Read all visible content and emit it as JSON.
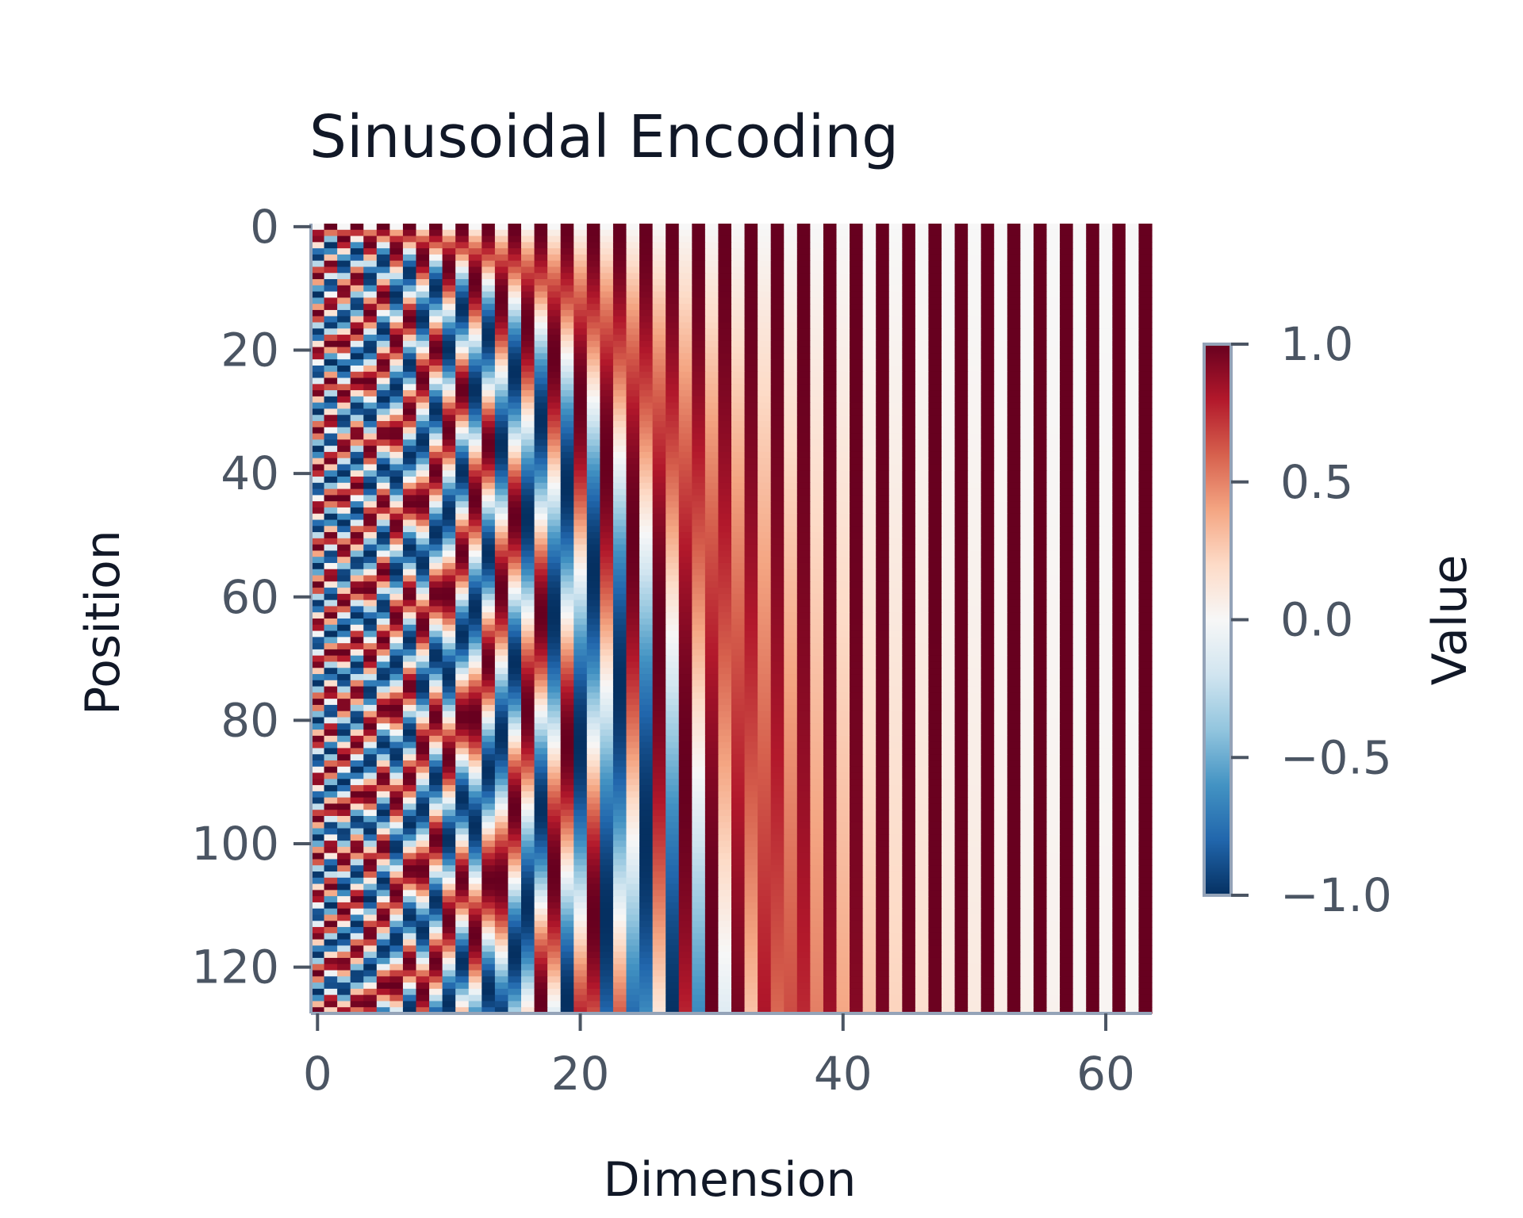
{
  "chart_data": {
    "type": "heatmap",
    "title": "Sinusoidal Encoding",
    "xlabel": "Dimension",
    "ylabel": "Position",
    "colorbar_label": "Value",
    "rows": 128,
    "cols": 64,
    "value_formula": "PE(pos, 2i) = sin(pos / 10000^(2i/64)), PE(pos, 2i+1) = cos(pos / 10000^(2i/64))",
    "x_ticks": [
      0,
      20,
      40,
      60
    ],
    "x_tick_labels": [
      "0",
      "20",
      "40",
      "60"
    ],
    "y_ticks": [
      0,
      20,
      40,
      60,
      80,
      100,
      120
    ],
    "y_tick_labels": [
      "0",
      "20",
      "40",
      "60",
      "80",
      "100",
      "120"
    ],
    "colorbar_ticks": [
      1.0,
      0.5,
      0.0,
      -0.5,
      -1.0
    ],
    "colorbar_tick_labels": [
      "1.0",
      "0.5",
      "0.0",
      "−0.5",
      "−1.0"
    ],
    "vmin": -1.0,
    "vmax": 1.0,
    "colormap": "RdBu_r",
    "colormap_stops": [
      "#053061",
      "#2166ac",
      "#4393c3",
      "#92c5de",
      "#d1e5f0",
      "#f7f7f7",
      "#fddbc7",
      "#f4a582",
      "#d6604d",
      "#b2182b",
      "#67001f"
    ],
    "axis_color": "#94a3b8",
    "grid": false
  }
}
